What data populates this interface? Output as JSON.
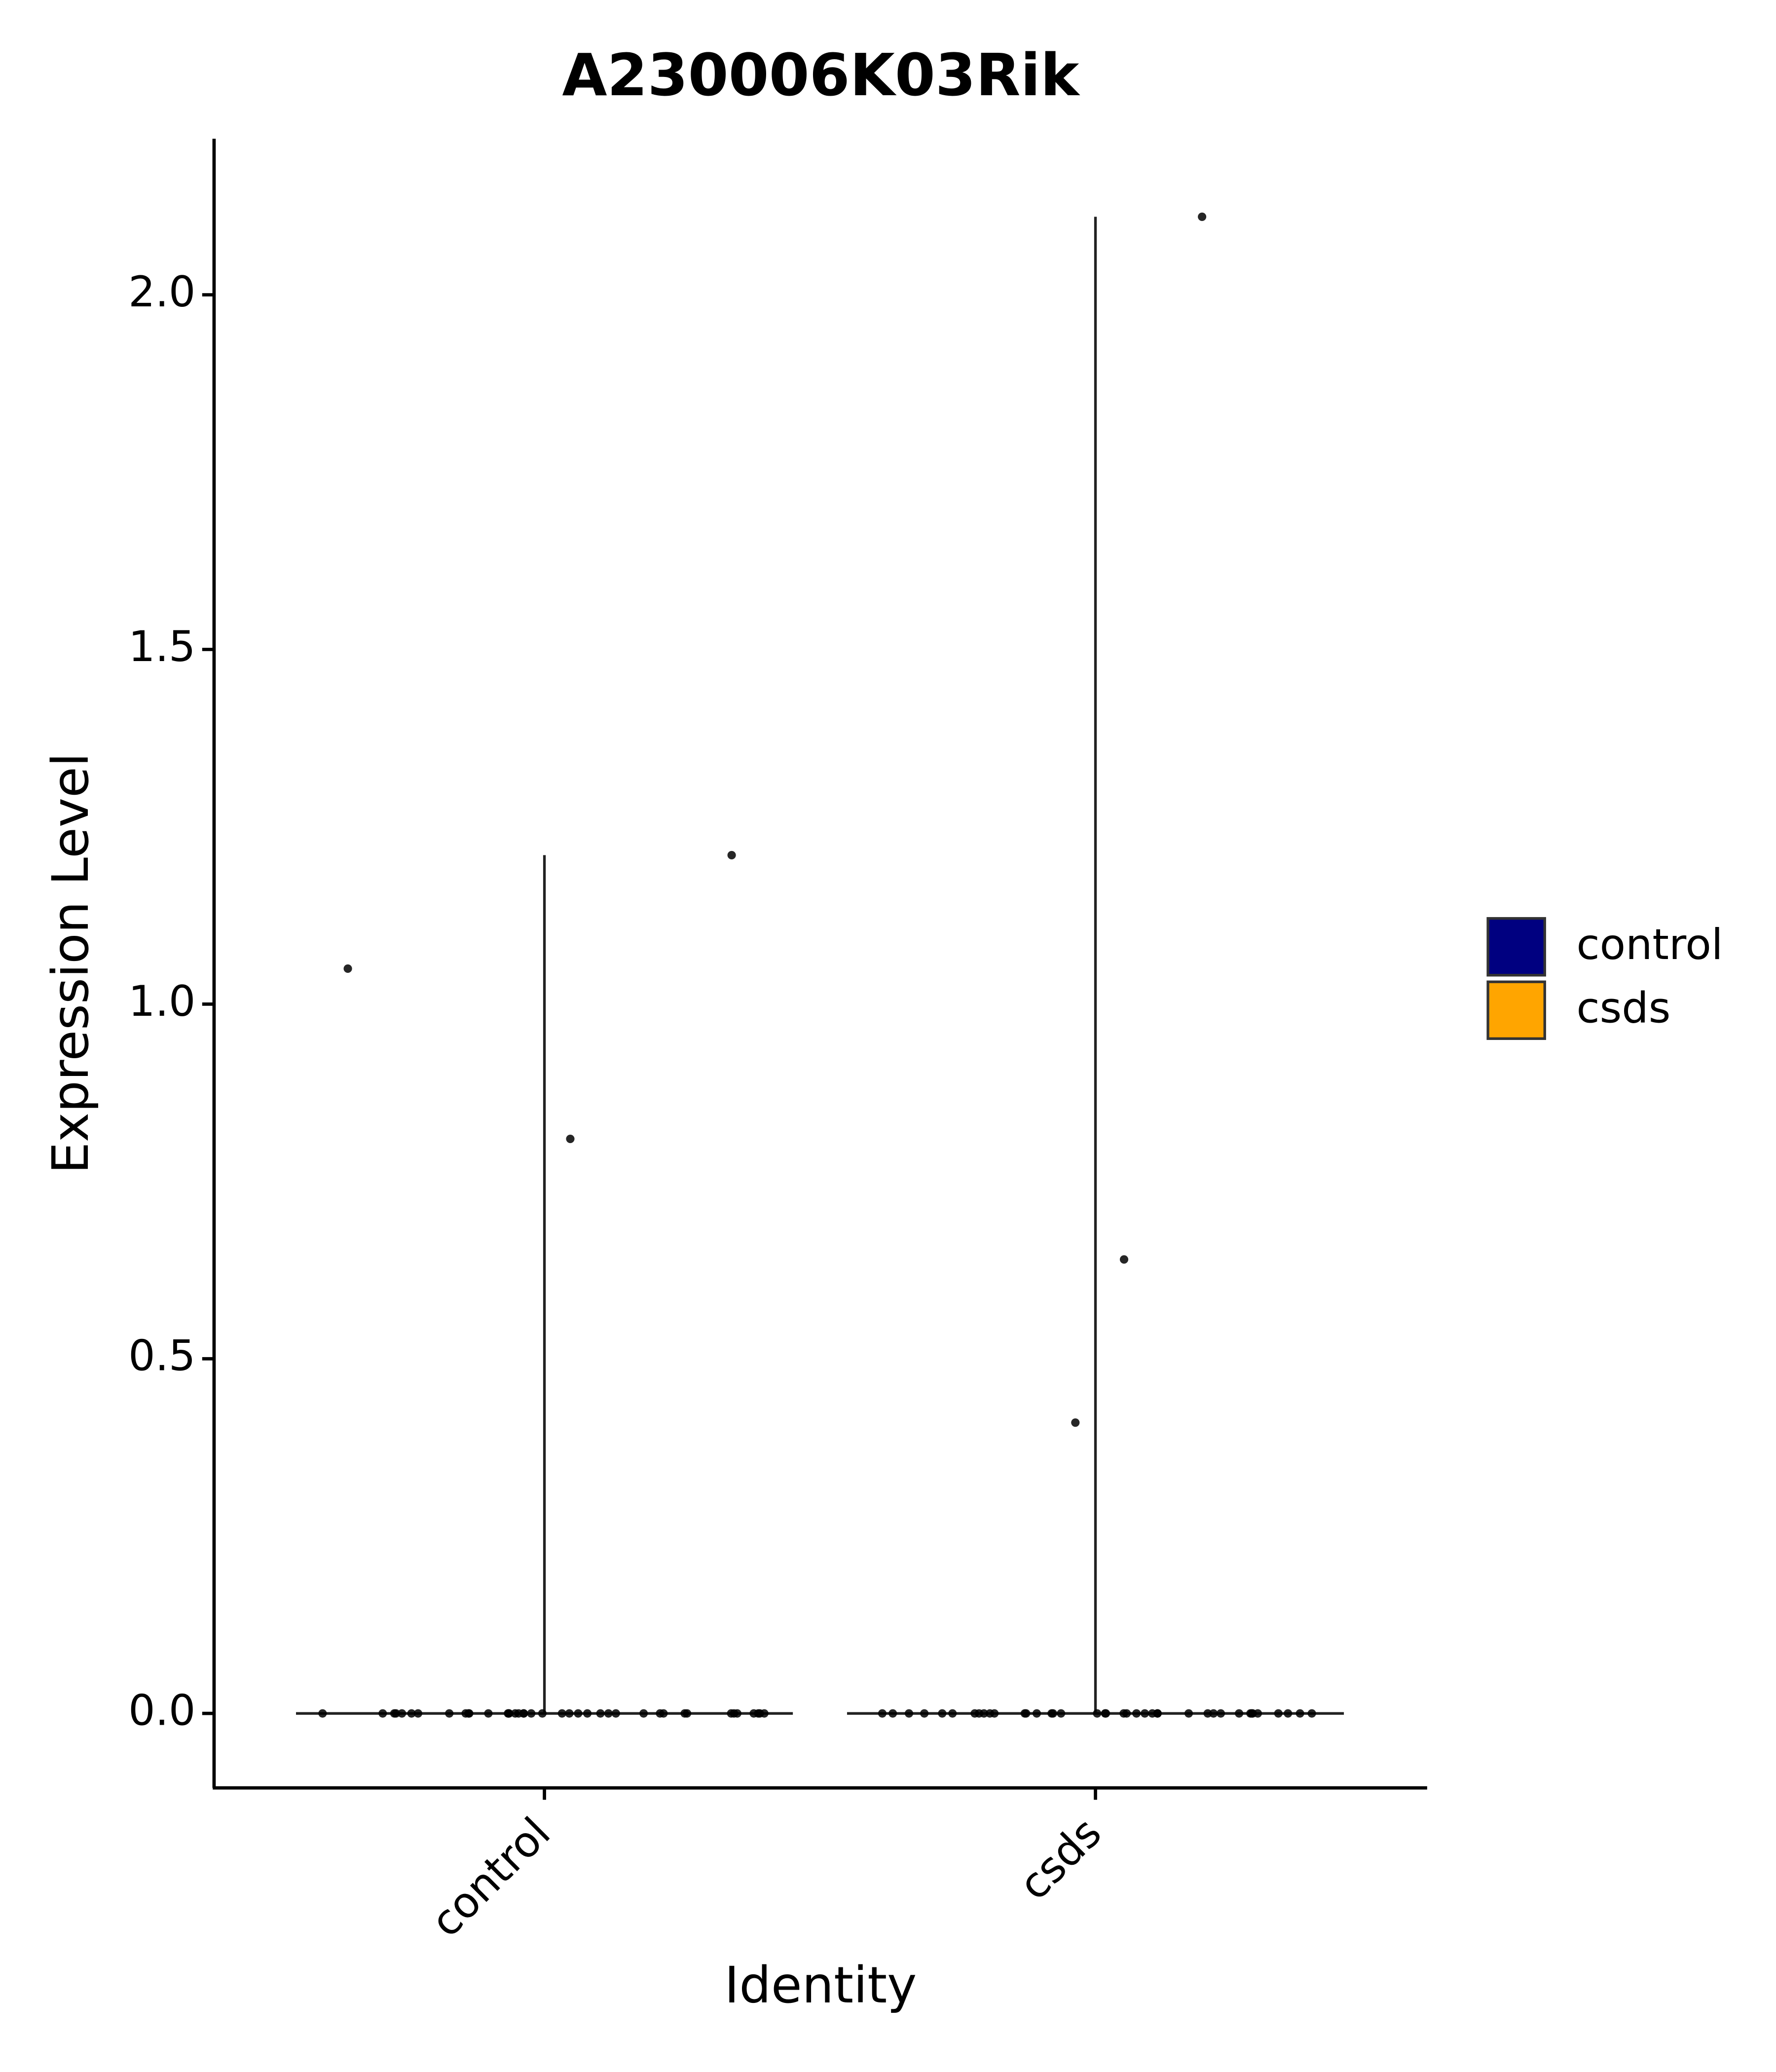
{
  "chart_data": {
    "type": "violin",
    "title": "A230006K03Rik",
    "x_label": "Identity",
    "y_label": "Expression Level",
    "categories": [
      "control",
      "csds"
    ],
    "series": [
      {
        "name": "control",
        "color": "#000080",
        "values": [
          1.21,
          1.05,
          0.81,
          0,
          0,
          0,
          0,
          0,
          0,
          0,
          0,
          0,
          0,
          0,
          0,
          0,
          0,
          0,
          0,
          0,
          0,
          0,
          0,
          0,
          0,
          0,
          0,
          0,
          0,
          0,
          0,
          0,
          0,
          0,
          0,
          0,
          0,
          0,
          0,
          0,
          0,
          0,
          0
        ]
      },
      {
        "name": "csds",
        "color": "#FFA500",
        "values": [
          2.11,
          0.64,
          0.41,
          0,
          0,
          0,
          0,
          0,
          0,
          0,
          0,
          0,
          0,
          0,
          0,
          0,
          0,
          0,
          0,
          0,
          0,
          0,
          0,
          0,
          0,
          0,
          0,
          0,
          0,
          0,
          0,
          0,
          0,
          0,
          0,
          0,
          0,
          0,
          0,
          0,
          0,
          0,
          0
        ]
      }
    ],
    "ylim": [
      -0.105,
      2.22
    ],
    "yticks": [
      {
        "value": 0,
        "label": "0.0"
      },
      0.5,
      {
        "value": 1,
        "label": "1.0"
      },
      1.5,
      {
        "value": 2,
        "label": "2.0"
      }
    ],
    "legend": "right"
  }
}
